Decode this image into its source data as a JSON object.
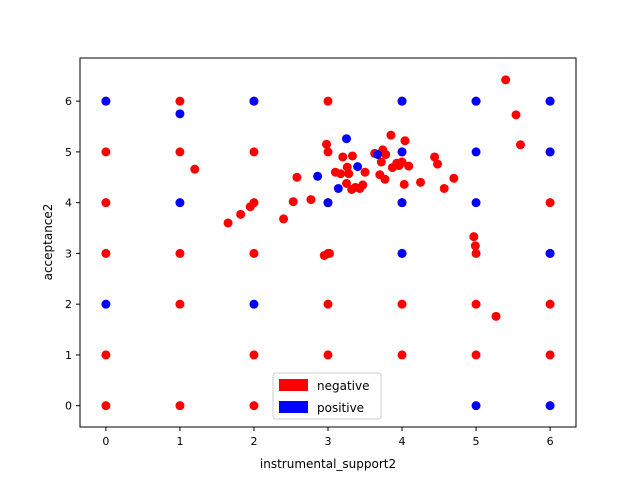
{
  "chart_data": {
    "type": "scatter",
    "title": "",
    "xlabel": "instrumental_support2",
    "ylabel": "acceptance2",
    "xlim": [
      -0.35,
      6.35
    ],
    "ylim": [
      -0.42,
      6.85
    ],
    "xticks": [
      0,
      1,
      2,
      3,
      4,
      5,
      6
    ],
    "yticks": [
      0,
      1,
      2,
      3,
      4,
      5,
      6
    ],
    "grid": false,
    "legend_placement": "lower center",
    "series": [
      {
        "name": "negative",
        "color": "#ff0000",
        "points": [
          [
            0,
            0
          ],
          [
            0,
            1
          ],
          [
            0,
            3
          ],
          [
            0,
            4
          ],
          [
            0,
            5
          ],
          [
            0,
            6
          ],
          [
            1,
            0
          ],
          [
            1,
            2
          ],
          [
            1,
            3
          ],
          [
            1,
            5
          ],
          [
            1,
            6
          ],
          [
            1.2,
            4.66
          ],
          [
            2,
            0
          ],
          [
            2,
            1
          ],
          [
            2,
            3
          ],
          [
            2,
            4
          ],
          [
            2,
            5
          ],
          [
            2,
            6
          ],
          [
            3,
            1
          ],
          [
            3,
            2
          ],
          [
            3,
            3
          ],
          [
            3,
            4
          ],
          [
            3,
            5
          ],
          [
            3,
            6
          ],
          [
            2.95,
            2.96
          ],
          [
            3.02,
            3.0
          ],
          [
            2.98,
            5.15
          ],
          [
            4,
            1
          ],
          [
            4,
            2
          ],
          [
            4,
            3
          ],
          [
            4,
            4
          ],
          [
            4,
            5
          ],
          [
            4,
            6
          ],
          [
            5,
            1
          ],
          [
            5,
            2
          ],
          [
            5,
            3
          ],
          [
            5,
            6
          ],
          [
            4.97,
            3.33
          ],
          [
            4.99,
            3.15
          ],
          [
            6,
            1
          ],
          [
            6,
            2
          ],
          [
            6,
            3
          ],
          [
            6,
            4
          ],
          [
            6,
            5
          ],
          [
            6,
            6
          ],
          [
            1.65,
            3.6
          ],
          [
            1.82,
            3.77
          ],
          [
            1.95,
            3.92
          ],
          [
            2.4,
            3.68
          ],
          [
            2.53,
            4.02
          ],
          [
            2.58,
            4.5
          ],
          [
            2.77,
            4.06
          ],
          [
            3.1,
            4.6
          ],
          [
            3.17,
            4.57
          ],
          [
            3.2,
            4.9
          ],
          [
            3.25,
            4.38
          ],
          [
            3.26,
            4.7
          ],
          [
            3.28,
            4.57
          ],
          [
            3.32,
            4.26
          ],
          [
            3.33,
            4.92
          ],
          [
            3.37,
            4.3
          ],
          [
            3.43,
            4.28
          ],
          [
            3.47,
            4.35
          ],
          [
            3.5,
            4.6
          ],
          [
            3.63,
            4.97
          ],
          [
            3.7,
            4.55
          ],
          [
            3.72,
            4.8
          ],
          [
            3.74,
            5.04
          ],
          [
            3.77,
            4.46
          ],
          [
            3.78,
            4.95
          ],
          [
            3.85,
            5.33
          ],
          [
            3.87,
            4.69
          ],
          [
            3.93,
            4.78
          ],
          [
            3.96,
            4.73
          ],
          [
            4.0,
            4.8
          ],
          [
            4.03,
            4.36
          ],
          [
            4.04,
            5.22
          ],
          [
            4.09,
            4.72
          ],
          [
            4.25,
            4.4
          ],
          [
            4.44,
            4.9
          ],
          [
            4.48,
            4.76
          ],
          [
            4.57,
            4.28
          ],
          [
            4.7,
            4.48
          ],
          [
            5.27,
            1.76
          ],
          [
            5.4,
            6.42
          ],
          [
            5.54,
            5.73
          ],
          [
            5.6,
            5.14
          ]
        ]
      },
      {
        "name": "positive",
        "color": "#0000ff",
        "points": [
          [
            0,
            2
          ],
          [
            0,
            6
          ],
          [
            1,
            4
          ],
          [
            1,
            5.75
          ],
          [
            2,
            2
          ],
          [
            2,
            6
          ],
          [
            2.86,
            4.52
          ],
          [
            3,
            4
          ],
          [
            3.14,
            4.28
          ],
          [
            3.25,
            5.26
          ],
          [
            3.4,
            4.71
          ],
          [
            3.67,
            4.95
          ],
          [
            4,
            3
          ],
          [
            4,
            4
          ],
          [
            4,
            5
          ],
          [
            4,
            6
          ],
          [
            5,
            0
          ],
          [
            5,
            4
          ],
          [
            5,
            5
          ],
          [
            5,
            6
          ],
          [
            6,
            0
          ],
          [
            6,
            3
          ],
          [
            6,
            5
          ],
          [
            6,
            6
          ]
        ]
      }
    ]
  }
}
